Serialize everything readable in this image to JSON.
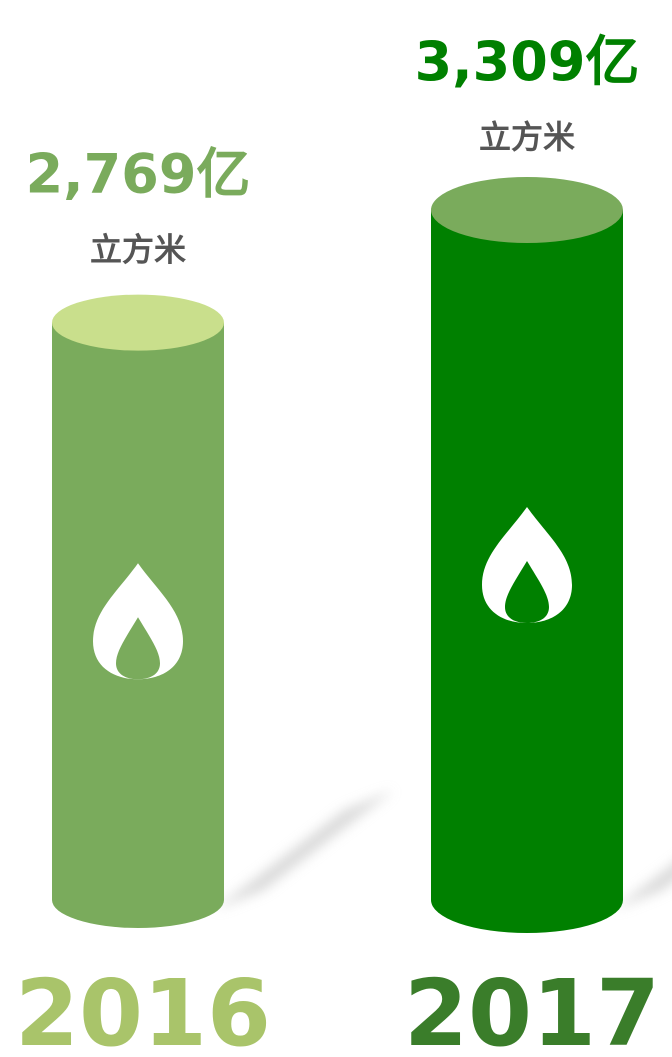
{
  "chart_data": {
    "type": "cylinder",
    "categories": [
      "2016",
      "2017"
    ],
    "values": [
      2769,
      3309
    ],
    "value_labels": [
      "2,769亿",
      "3,309亿"
    ],
    "unit": "立方米",
    "colors": [
      "#7aab5c",
      "#008000"
    ],
    "top_colors": [
      "#c9df8c",
      "#7aab5c"
    ],
    "category_colors": [
      "#a9c46a",
      "#3a7d2a"
    ]
  }
}
